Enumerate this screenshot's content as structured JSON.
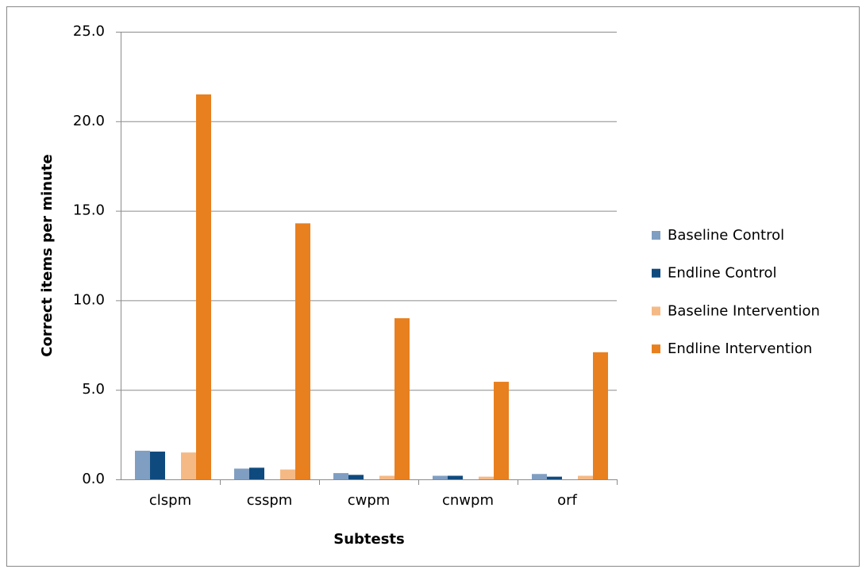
{
  "chart_data": {
    "type": "bar",
    "x_label": "Subtests",
    "y_label": "Correct items per minute",
    "categories": [
      "clspm",
      "csspm",
      "cwpm",
      "cnwpm",
      "orf"
    ],
    "series": [
      {
        "name": "Baseline Control",
        "color": "#809ec2",
        "values": [
          1.6,
          0.6,
          0.35,
          0.2,
          0.3
        ]
      },
      {
        "name": "Endline Control",
        "color": "#0f4a7e",
        "values": [
          1.55,
          0.65,
          0.25,
          0.2,
          0.15
        ]
      },
      {
        "name": "Baseline Intervention",
        "color": "#f5b985",
        "values": [
          1.5,
          0.55,
          0.2,
          0.15,
          0.2
        ]
      },
      {
        "name": "Endline Intervention",
        "color": "#e8801f",
        "values": [
          21.5,
          14.3,
          9.0,
          5.45,
          7.1
        ]
      }
    ],
    "ylim": [
      0,
      25
    ],
    "yticks": [
      {
        "value": 0,
        "label": "0.0"
      },
      {
        "value": 5,
        "label": "5.0"
      },
      {
        "value": 10,
        "label": "10.0"
      },
      {
        "value": 15,
        "label": "15.0"
      },
      {
        "value": 20,
        "label": "20.0"
      },
      {
        "value": 25,
        "label": "25.0"
      }
    ],
    "grid": true,
    "legend": "right"
  }
}
